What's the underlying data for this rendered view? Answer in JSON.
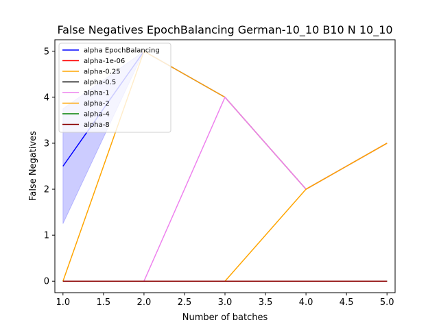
{
  "chart_data": {
    "type": "line",
    "title": "False Negatives EpochBalancing German-10_10 B10 N 10_10",
    "xlabel": "Number of batches",
    "ylabel": "False Negatives",
    "xlim": [
      0.9,
      5.1
    ],
    "ylim": [
      -0.25,
      5.25
    ],
    "xticks": [
      1.0,
      1.5,
      2.0,
      2.5,
      3.0,
      3.5,
      4.0,
      4.5,
      5.0
    ],
    "xtick_labels": [
      "1.0",
      "1.5",
      "2.0",
      "2.5",
      "3.0",
      "3.5",
      "4.0",
      "4.5",
      "5.0"
    ],
    "yticks": [
      0,
      1,
      2,
      3,
      4,
      5
    ],
    "ytick_labels": [
      "0",
      "1",
      "2",
      "3",
      "4",
      "5"
    ],
    "grid": false,
    "legend_position": "top-left",
    "band": {
      "series": "alpha EpochBalancing",
      "color": "#0000ff",
      "x": [
        1,
        2
      ],
      "lower": [
        1.25,
        5
      ],
      "upper": [
        3.75,
        5
      ]
    },
    "series": [
      {
        "name": "alpha EpochBalancing",
        "color": "#0000ff",
        "x": [
          1,
          2,
          3,
          4,
          5
        ],
        "y": [
          2.5,
          5,
          4,
          2,
          3
        ]
      },
      {
        "name": "alpha-1e-06",
        "color": "#ff0000",
        "x": [
          1,
          2,
          3,
          4,
          5
        ],
        "y": [
          0,
          0,
          0,
          0,
          0
        ]
      },
      {
        "name": "alpha-0.25",
        "color": "#ffa500",
        "x": [
          1,
          2,
          3,
          4,
          5
        ],
        "y": [
          0,
          5,
          4,
          2,
          3
        ]
      },
      {
        "name": "alpha-0.5",
        "color": "#000000",
        "x": [
          1,
          2,
          3,
          4,
          5
        ],
        "y": [
          0,
          0,
          0,
          0,
          0
        ]
      },
      {
        "name": "alpha-1",
        "color": "#ee82ee",
        "x": [
          1,
          2,
          3,
          4,
          5
        ],
        "y": [
          0,
          0,
          4,
          2,
          3
        ]
      },
      {
        "name": "alpha-2",
        "color": "#ffa500",
        "x": [
          1,
          2,
          3,
          4,
          5
        ],
        "y": [
          0,
          0,
          0,
          2,
          3
        ]
      },
      {
        "name": "alpha-4",
        "color": "#008000",
        "x": [
          1,
          2,
          3,
          4,
          5
        ],
        "y": [
          0,
          0,
          0,
          0,
          0
        ]
      },
      {
        "name": "alpha-8",
        "color": "#8b0000",
        "x": [
          1,
          2,
          3,
          4,
          5
        ],
        "y": [
          0,
          0,
          0,
          0,
          0
        ]
      }
    ]
  }
}
